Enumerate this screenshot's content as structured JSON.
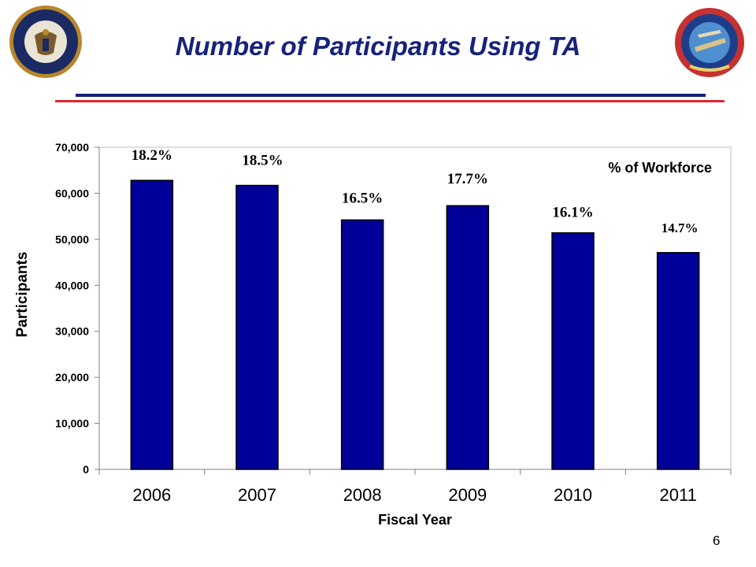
{
  "slide": {
    "title": "Number of Participants Using TA",
    "page_number": "6",
    "colors": {
      "title": "#16237b",
      "bar_fill": "#000099",
      "rule_blue": "#16237b",
      "rule_red": "#e0262b"
    },
    "logos": {
      "left": "navy-seal-icon",
      "right": "netc-seal-icon"
    }
  },
  "chart_data": {
    "type": "bar",
    "categories": [
      "2006",
      "2007",
      "2008",
      "2009",
      "2010",
      "2011"
    ],
    "values": [
      62800,
      61700,
      54200,
      57300,
      51400,
      47100
    ],
    "data_labels": [
      "18.2%",
      "18.5%",
      "16.5%",
      "17.7%",
      "16.1%",
      "14.7%"
    ],
    "annotation": "% of Workforce",
    "xlabel": "Fiscal Year",
    "ylabel": "Participants",
    "ylim": [
      0,
      70000
    ],
    "yticks": [
      0,
      10000,
      20000,
      30000,
      40000,
      50000,
      60000,
      70000
    ],
    "ytick_labels": [
      "0",
      "10,000",
      "20,000",
      "30,000",
      "40,000",
      "50,000",
      "60,000",
      "70,000"
    ],
    "grid": false,
    "legend": "none"
  }
}
